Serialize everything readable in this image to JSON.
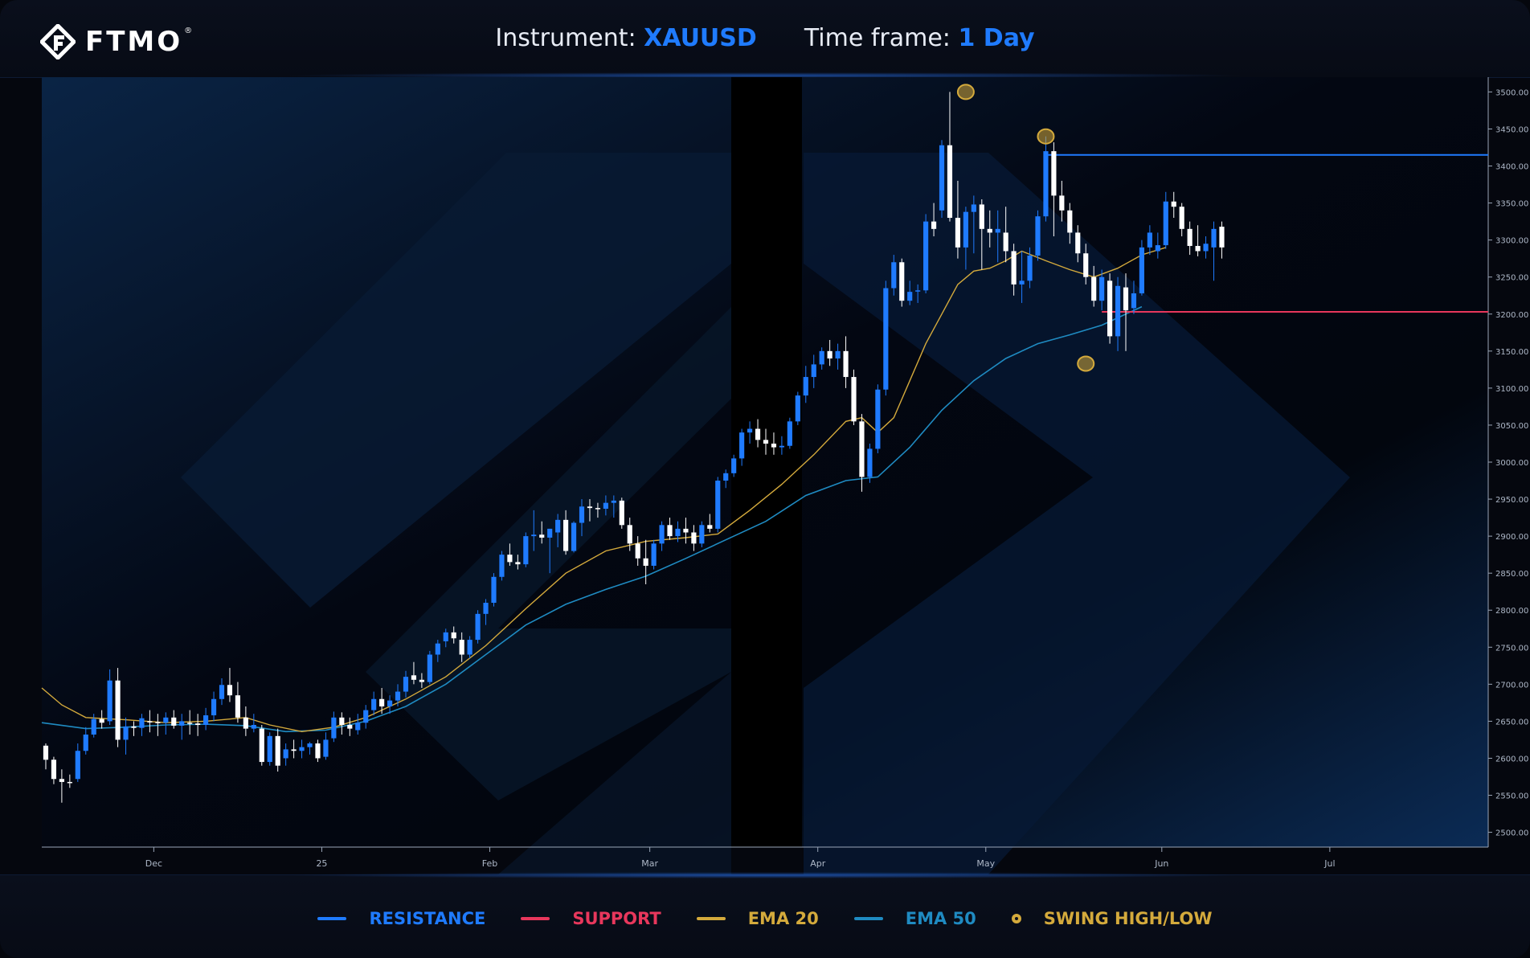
{
  "header": {
    "brand": "FTMO",
    "instrument_label": "Instrument:",
    "instrument_value": "XAUUSD",
    "timeframe_label": "Time frame:",
    "timeframe_value": "1 Day"
  },
  "legend": [
    {
      "label": "RESISTANCE",
      "color": "#1f7bff",
      "kind": "line"
    },
    {
      "label": "SUPPORT",
      "color": "#e8375c",
      "kind": "line"
    },
    {
      "label": "EMA 20",
      "color": "#d4aa3c",
      "kind": "line"
    },
    {
      "label": "EMA 50",
      "color": "#1f8bc2",
      "kind": "line"
    },
    {
      "label": "SWING HIGH/LOW",
      "color": "#d4aa3c",
      "kind": "dot"
    }
  ],
  "colors": {
    "up_candle": "#1f7bff",
    "down_candle": "#ffffff",
    "resistance": "#1f7bff",
    "support": "#e8375c",
    "ema20": "#d4aa3c",
    "ema50": "#1f8bc2",
    "swing": "#d4aa3c"
  },
  "chart_data": {
    "type": "candlestick",
    "instrument": "XAUUSD",
    "timeframe": "1 Day",
    "ylim": [
      2480,
      3520
    ],
    "y_ticks": [
      "2500.00",
      "2550.00",
      "2600.00",
      "2650.00",
      "2700.00",
      "2750.00",
      "2800.00",
      "2850.00",
      "2900.00",
      "2950.00",
      "3000.00",
      "3050.00",
      "3100.00",
      "3150.00",
      "3200.00",
      "3250.00",
      "3300.00",
      "3350.00",
      "3400.00",
      "3450.00",
      "3500.00"
    ],
    "x_ticks": [
      {
        "label": "Dec",
        "bar": 13.5
      },
      {
        "label": "25",
        "bar": 34.5
      },
      {
        "label": "Feb",
        "bar": 55.5
      },
      {
        "label": "Mar",
        "bar": 75.5
      },
      {
        "label": "Apr",
        "bar": 96.5
      },
      {
        "label": "May",
        "bar": 117.5
      },
      {
        "label": "Jun",
        "bar": 139.5
      },
      {
        "label": "Jul",
        "bar": 160.5
      }
    ],
    "x_bar_range": [
      -0.5,
      180.3
    ],
    "candles": [
      [
        2617,
        2620,
        2585,
        2598
      ],
      [
        2598,
        2602,
        2565,
        2572
      ],
      [
        2572,
        2585,
        2540,
        2568
      ],
      [
        2568,
        2578,
        2560,
        2567
      ],
      [
        2572,
        2620,
        2568,
        2610
      ],
      [
        2610,
        2642,
        2605,
        2632
      ],
      [
        2632,
        2660,
        2628,
        2653
      ],
      [
        2653,
        2665,
        2640,
        2648
      ],
      [
        2650,
        2720,
        2645,
        2705
      ],
      [
        2705,
        2722,
        2615,
        2625
      ],
      [
        2625,
        2655,
        2605,
        2643
      ],
      [
        2643,
        2650,
        2630,
        2641
      ],
      [
        2641,
        2660,
        2630,
        2654
      ],
      [
        2650,
        2665,
        2635,
        2649
      ],
      [
        2649,
        2660,
        2630,
        2648
      ],
      [
        2648,
        2662,
        2632,
        2655
      ],
      [
        2655,
        2665,
        2640,
        2644
      ],
      [
        2644,
        2660,
        2625,
        2650
      ],
      [
        2648,
        2665,
        2632,
        2647
      ],
      [
        2647,
        2660,
        2630,
        2645
      ],
      [
        2645,
        2668,
        2638,
        2658
      ],
      [
        2658,
        2690,
        2650,
        2680
      ],
      [
        2680,
        2708,
        2672,
        2699
      ],
      [
        2699,
        2722,
        2676,
        2685
      ],
      [
        2685,
        2703,
        2648,
        2655
      ],
      [
        2655,
        2670,
        2630,
        2640
      ],
      [
        2640,
        2660,
        2635,
        2645
      ],
      [
        2640,
        2645,
        2590,
        2595
      ],
      [
        2595,
        2635,
        2590,
        2630
      ],
      [
        2630,
        2640,
        2582,
        2590
      ],
      [
        2600,
        2620,
        2590,
        2612
      ],
      [
        2612,
        2625,
        2600,
        2610
      ],
      [
        2610,
        2625,
        2600,
        2615
      ],
      [
        2615,
        2622,
        2605,
        2620
      ],
      [
        2620,
        2625,
        2595,
        2600
      ],
      [
        2602,
        2635,
        2598,
        2625
      ],
      [
        2627,
        2663,
        2622,
        2655
      ],
      [
        2655,
        2662,
        2632,
        2645
      ],
      [
        2645,
        2655,
        2630,
        2640
      ],
      [
        2638,
        2660,
        2632,
        2648
      ],
      [
        2648,
        2672,
        2640,
        2665
      ],
      [
        2665,
        2690,
        2658,
        2680
      ],
      [
        2680,
        2695,
        2660,
        2670
      ],
      [
        2670,
        2685,
        2660,
        2678
      ],
      [
        2678,
        2700,
        2670,
        2690
      ],
      [
        2690,
        2718,
        2682,
        2710
      ],
      [
        2712,
        2730,
        2700,
        2706
      ],
      [
        2706,
        2715,
        2695,
        2703
      ],
      [
        2703,
        2745,
        2700,
        2740
      ],
      [
        2740,
        2760,
        2730,
        2755
      ],
      [
        2758,
        2775,
        2750,
        2770
      ],
      [
        2770,
        2778,
        2755,
        2762
      ],
      [
        2760,
        2770,
        2730,
        2740
      ],
      [
        2740,
        2765,
        2735,
        2760
      ],
      [
        2760,
        2800,
        2755,
        2795
      ],
      [
        2795,
        2815,
        2780,
        2810
      ],
      [
        2810,
        2850,
        2805,
        2845
      ],
      [
        2845,
        2880,
        2840,
        2875
      ],
      [
        2875,
        2890,
        2860,
        2865
      ],
      [
        2865,
        2875,
        2855,
        2862
      ],
      [
        2862,
        2905,
        2858,
        2900
      ],
      [
        2900,
        2935,
        2880,
        2902
      ],
      [
        2902,
        2920,
        2890,
        2898
      ],
      [
        2898,
        2910,
        2850,
        2910
      ],
      [
        2905,
        2930,
        2885,
        2922
      ],
      [
        2922,
        2935,
        2875,
        2880
      ],
      [
        2880,
        2920,
        2878,
        2918
      ],
      [
        2918,
        2950,
        2900,
        2940
      ],
      [
        2940,
        2950,
        2920,
        2938
      ],
      [
        2938,
        2945,
        2925,
        2937
      ],
      [
        2937,
        2955,
        2928,
        2945
      ],
      [
        2945,
        2955,
        2925,
        2948
      ],
      [
        2948,
        2952,
        2910,
        2915
      ],
      [
        2915,
        2925,
        2880,
        2890
      ],
      [
        2890,
        2900,
        2860,
        2870
      ],
      [
        2870,
        2895,
        2835,
        2860
      ],
      [
        2860,
        2895,
        2855,
        2890
      ],
      [
        2890,
        2920,
        2880,
        2915
      ],
      [
        2915,
        2925,
        2895,
        2900
      ],
      [
        2900,
        2920,
        2892,
        2910
      ],
      [
        2910,
        2925,
        2890,
        2905
      ],
      [
        2905,
        2915,
        2880,
        2890
      ],
      [
        2890,
        2920,
        2885,
        2915
      ],
      [
        2915,
        2930,
        2905,
        2910
      ],
      [
        2910,
        2980,
        2905,
        2975
      ],
      [
        2975,
        2990,
        2965,
        2985
      ],
      [
        2985,
        3010,
        2980,
        3005
      ],
      [
        3005,
        3045,
        2995,
        3040
      ],
      [
        3040,
        3055,
        3025,
        3045
      ],
      [
        3045,
        3058,
        3020,
        3030
      ],
      [
        3030,
        3045,
        3010,
        3025
      ],
      [
        3025,
        3040,
        3010,
        3020
      ],
      [
        3020,
        3035,
        3010,
        3022
      ],
      [
        3022,
        3060,
        3018,
        3055
      ],
      [
        3055,
        3095,
        3050,
        3090
      ],
      [
        3090,
        3130,
        3080,
        3115
      ],
      [
        3115,
        3145,
        3100,
        3132
      ],
      [
        3132,
        3155,
        3125,
        3150
      ],
      [
        3150,
        3165,
        3130,
        3140
      ],
      [
        3140,
        3160,
        3125,
        3150
      ],
      [
        3150,
        3170,
        3100,
        3115
      ],
      [
        3115,
        3125,
        3050,
        3055
      ],
      [
        3055,
        3065,
        2960,
        2980
      ],
      [
        2980,
        3025,
        2972,
        3018
      ],
      [
        3018,
        3105,
        3012,
        3098
      ],
      [
        3098,
        3245,
        3090,
        3235
      ],
      [
        3235,
        3280,
        3225,
        3270
      ],
      [
        3270,
        3275,
        3210,
        3218
      ],
      [
        3218,
        3245,
        3212,
        3230
      ],
      [
        3232,
        3240,
        3215,
        3232
      ],
      [
        3232,
        3335,
        3228,
        3325
      ],
      [
        3325,
        3350,
        3305,
        3315
      ],
      [
        3340,
        3435,
        3330,
        3428
      ],
      [
        3428,
        3500,
        3325,
        3330
      ],
      [
        3330,
        3380,
        3275,
        3290
      ],
      [
        3290,
        3345,
        3260,
        3338
      ],
      [
        3338,
        3360,
        3282,
        3348
      ],
      [
        3348,
        3355,
        3260,
        3315
      ],
      [
        3315,
        3340,
        3290,
        3310
      ],
      [
        3310,
        3340,
        3270,
        3315
      ],
      [
        3310,
        3345,
        3270,
        3285
      ],
      [
        3285,
        3295,
        3225,
        3240
      ],
      [
        3240,
        3285,
        3215,
        3245
      ],
      [
        3245,
        3290,
        3235,
        3279
      ],
      [
        3279,
        3340,
        3272,
        3332
      ],
      [
        3332,
        3440,
        3325,
        3420
      ],
      [
        3420,
        3432,
        3305,
        3360
      ],
      [
        3360,
        3380,
        3325,
        3340
      ],
      [
        3340,
        3350,
        3295,
        3310
      ],
      [
        3310,
        3320,
        3270,
        3282
      ],
      [
        3282,
        3295,
        3240,
        3250
      ],
      [
        3250,
        3265,
        3210,
        3218
      ],
      [
        3218,
        3260,
        3205,
        3250
      ],
      [
        3245,
        3255,
        3160,
        3170
      ],
      [
        3170,
        3250,
        3150,
        3238
      ],
      [
        3236,
        3255,
        3150,
        3205
      ],
      [
        3208,
        3245,
        3200,
        3228
      ],
      [
        3228,
        3300,
        3225,
        3290
      ],
      [
        3290,
        3320,
        3280,
        3310
      ],
      [
        3285,
        3310,
        3275,
        3293
      ],
      [
        3293,
        3365,
        3288,
        3352
      ],
      [
        3352,
        3365,
        3330,
        3345
      ],
      [
        3345,
        3350,
        3305,
        3315
      ],
      [
        3315,
        3325,
        3280,
        3292
      ],
      [
        3292,
        3320,
        3278,
        3285
      ],
      [
        3285,
        3305,
        3275,
        3295
      ],
      [
        3290,
        3325,
        3245,
        3315
      ],
      [
        3318,
        3325,
        3275,
        3290
      ]
    ],
    "ema20": [
      [
        -0.5,
        2695
      ],
      [
        2,
        2672
      ],
      [
        5,
        2655
      ],
      [
        10,
        2652
      ],
      [
        15,
        2648
      ],
      [
        20,
        2650
      ],
      [
        25,
        2655
      ],
      [
        28,
        2645
      ],
      [
        32,
        2636
      ],
      [
        36,
        2642
      ],
      [
        40,
        2655
      ],
      [
        45,
        2680
      ],
      [
        50,
        2710
      ],
      [
        55,
        2752
      ],
      [
        60,
        2802
      ],
      [
        65,
        2850
      ],
      [
        70,
        2880
      ],
      [
        75,
        2893
      ],
      [
        80,
        2898
      ],
      [
        84,
        2903
      ],
      [
        88,
        2935
      ],
      [
        92,
        2970
      ],
      [
        96,
        3010
      ],
      [
        100,
        3055
      ],
      [
        102,
        3060
      ],
      [
        104,
        3040
      ],
      [
        106,
        3060
      ],
      [
        108,
        3110
      ],
      [
        110,
        3160
      ],
      [
        112,
        3200
      ],
      [
        114,
        3240
      ],
      [
        116,
        3258
      ],
      [
        118,
        3262
      ],
      [
        120,
        3272
      ],
      [
        122,
        3285
      ],
      [
        125,
        3272
      ],
      [
        128,
        3260
      ],
      [
        131,
        3250
      ],
      [
        134,
        3262
      ],
      [
        137,
        3280
      ],
      [
        140,
        3290
      ]
    ],
    "ema50": [
      [
        -0.5,
        2648
      ],
      [
        5,
        2640
      ],
      [
        10,
        2642
      ],
      [
        15,
        2645
      ],
      [
        20,
        2646
      ],
      [
        25,
        2644
      ],
      [
        30,
        2636
      ],
      [
        35,
        2638
      ],
      [
        40,
        2650
      ],
      [
        45,
        2670
      ],
      [
        50,
        2700
      ],
      [
        55,
        2740
      ],
      [
        60,
        2780
      ],
      [
        65,
        2808
      ],
      [
        70,
        2828
      ],
      [
        75,
        2846
      ],
      [
        80,
        2870
      ],
      [
        85,
        2895
      ],
      [
        90,
        2920
      ],
      [
        95,
        2955
      ],
      [
        100,
        2975
      ],
      [
        104,
        2980
      ],
      [
        108,
        3020
      ],
      [
        112,
        3070
      ],
      [
        116,
        3110
      ],
      [
        120,
        3140
      ],
      [
        124,
        3160
      ],
      [
        128,
        3172
      ],
      [
        132,
        3185
      ],
      [
        135,
        3200
      ],
      [
        137,
        3210
      ]
    ],
    "resistance": {
      "value": 3415,
      "from_bar": 125,
      "to_bar": 180.3
    },
    "support": {
      "value": 3203,
      "from_bar": 132,
      "to_bar": 180.3
    },
    "swing_points": [
      {
        "bar": 115,
        "price": 3500
      },
      {
        "bar": 125,
        "price": 3440
      },
      {
        "bar": 130,
        "price": 3133
      }
    ]
  }
}
